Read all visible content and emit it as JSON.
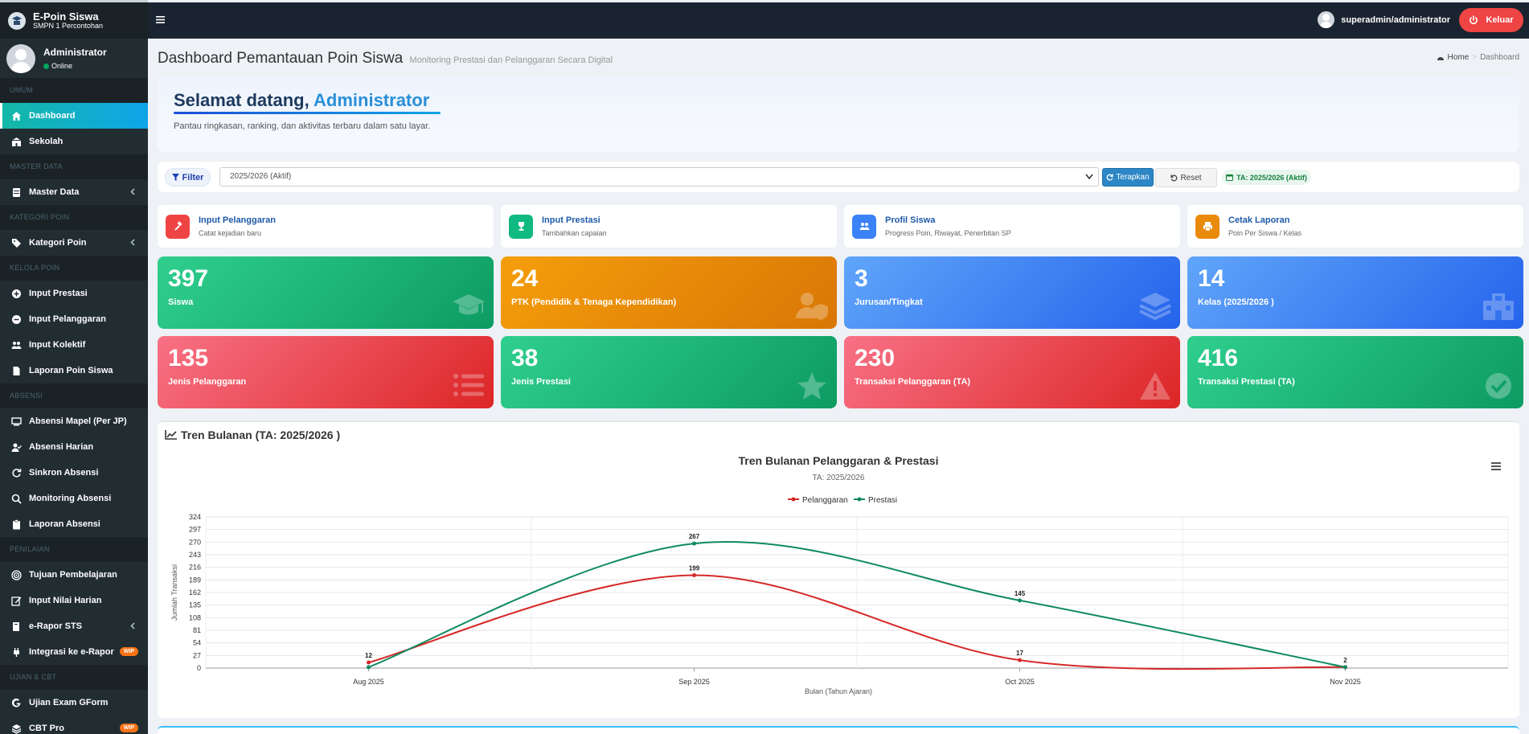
{
  "brand": {
    "title": "E-Poin Siswa",
    "subtitle": "SMPN 1 Percontohan"
  },
  "user_panel": {
    "name": "Administrator",
    "status": "Online"
  },
  "sidebar": {
    "sections": [
      {
        "title": "UMUM",
        "items": [
          {
            "label": "Dashboard",
            "icon": "home-icon",
            "active": true
          },
          {
            "label": "Sekolah",
            "icon": "school-icon"
          }
        ]
      },
      {
        "title": "MASTER DATA",
        "items": [
          {
            "label": "Master Data",
            "icon": "database-icon",
            "chevron": true
          }
        ]
      },
      {
        "title": "KATEGORI POIN",
        "items": [
          {
            "label": "Kategori Poin",
            "icon": "tag-icon",
            "chevron": true
          }
        ]
      },
      {
        "title": "KELOLA POIN",
        "items": [
          {
            "label": "Input Prestasi",
            "icon": "plus-circle-icon"
          },
          {
            "label": "Input Pelanggaran",
            "icon": "minus-circle-icon"
          },
          {
            "label": "Input Kolektif",
            "icon": "users-icon"
          },
          {
            "label": "Laporan Poin Siswa",
            "icon": "file-icon"
          }
        ]
      },
      {
        "title": "ABSENSI",
        "items": [
          {
            "label": "Absensi Mapel (Per JP)",
            "icon": "chalkboard-icon"
          },
          {
            "label": "Absensi Harian",
            "icon": "user-check-icon"
          },
          {
            "label": "Sinkron Absensi",
            "icon": "sync-icon"
          },
          {
            "label": "Monitoring Absensi",
            "icon": "search-icon"
          },
          {
            "label": "Laporan Absensi",
            "icon": "clipboard-icon"
          }
        ]
      },
      {
        "title": "PENILAIAN",
        "items": [
          {
            "label": "Tujuan Pembelajaran",
            "icon": "bullseye-icon"
          },
          {
            "label": "Input Nilai Harian",
            "icon": "edit-icon"
          },
          {
            "label": "e-Rapor STS",
            "icon": "book-icon",
            "chevron": true
          },
          {
            "label": "Integrasi ke e-Rapor",
            "icon": "plug-icon",
            "badge": "WIP"
          }
        ]
      },
      {
        "title": "UJIAN & CBT",
        "items": [
          {
            "label": "Ujian Exam GForm",
            "icon": "google-icon"
          },
          {
            "label": "CBT Pro",
            "icon": "layers-icon",
            "badge": "WIP"
          }
        ]
      }
    ]
  },
  "topbar": {
    "username": "superadmin/administrator",
    "logout_label": "Keluar"
  },
  "page": {
    "title": "Dashboard Pemantauan Poin Siswa",
    "subtitle": "Monitoring Prestasi dan Pelanggaran Secara Digital",
    "breadcrumb": [
      "Home",
      "Dashboard"
    ]
  },
  "welcome": {
    "prefix": "Selamat datang, ",
    "name": "Administrator",
    "subtitle": "Pantau ringkasan, ranking, dan aktivitas terbaru dalam satu layar."
  },
  "filter": {
    "label": "Filter",
    "selected": "2025/2026 (Aktif)",
    "apply_label": "Terapkan",
    "reset_label": "Reset",
    "badge": "TA: 2025/2026 (Aktif)"
  },
  "quick_links": [
    {
      "title": "Input Pelanggaran",
      "subtitle": "Catat kejadian baru",
      "icon": "gavel-icon",
      "color": "#ef4444"
    },
    {
      "title": "Input Prestasi",
      "subtitle": "Tambahkan capaian",
      "icon": "trophy-icon",
      "color": "#10b981"
    },
    {
      "title": "Profil Siswa",
      "subtitle": "Progress Poin, Riwayat, Penerbitan SP",
      "icon": "users-icon",
      "color": "#3b82f6"
    },
    {
      "title": "Cetak Laporan",
      "subtitle": "Poin Per Siswa / Kelas",
      "icon": "print-icon",
      "color": "#ea8a0b"
    }
  ],
  "stats": [
    {
      "value": "397",
      "label": "Siswa",
      "color": "green",
      "icon": "graduation-cap-icon"
    },
    {
      "value": "24",
      "label": "PTK (Pendidik & Tenaga Kependidikan)",
      "color": "orange",
      "icon": "user-shield-icon"
    },
    {
      "value": "3",
      "label": "Jurusan/Tingkat",
      "color": "blue",
      "icon": "layers-icon"
    },
    {
      "value": "14",
      "label": "Kelas (2025/2026 )",
      "color": "blue",
      "icon": "school-icon"
    },
    {
      "value": "135",
      "label": "Jenis Pelanggaran",
      "color": "red",
      "icon": "list-icon"
    },
    {
      "value": "38",
      "label": "Jenis Prestasi",
      "color": "green",
      "icon": "star-icon"
    },
    {
      "value": "230",
      "label": "Transaksi Pelanggaran (TA)",
      "color": "red",
      "icon": "warning-icon"
    },
    {
      "value": "416",
      "label": "Transaksi Prestasi (TA)",
      "color": "green",
      "icon": "check-circle-icon"
    }
  ],
  "chart_box": {
    "title": "Tren Bulanan (TA: 2025/2026 )"
  },
  "chart_data": {
    "type": "line",
    "title": "Tren Bulanan Pelanggaran & Prestasi",
    "subtitle": "TA: 2025/2026",
    "categories": [
      "Aug 2025",
      "Sep 2025",
      "Oct 2025",
      "Nov 2025"
    ],
    "series": [
      {
        "name": "Pelanggaran",
        "values": [
          12,
          199,
          17,
          2
        ],
        "color": "#d62828"
      },
      {
        "name": "Prestasi",
        "values": [
          2,
          267,
          145,
          2
        ],
        "color": "#0e8a5f"
      }
    ],
    "data_labels": [
      12,
      199,
      267,
      17,
      145,
      2
    ],
    "xlabel": "Bulan (Tahun Ajaran)",
    "ylabel": "Jumlah Transaksi",
    "yticks": [
      0,
      27,
      54,
      81,
      108,
      135,
      162,
      189,
      216,
      243,
      270,
      297,
      324
    ],
    "ylim": [
      0,
      324
    ],
    "legend": "top-center",
    "grid": true
  }
}
